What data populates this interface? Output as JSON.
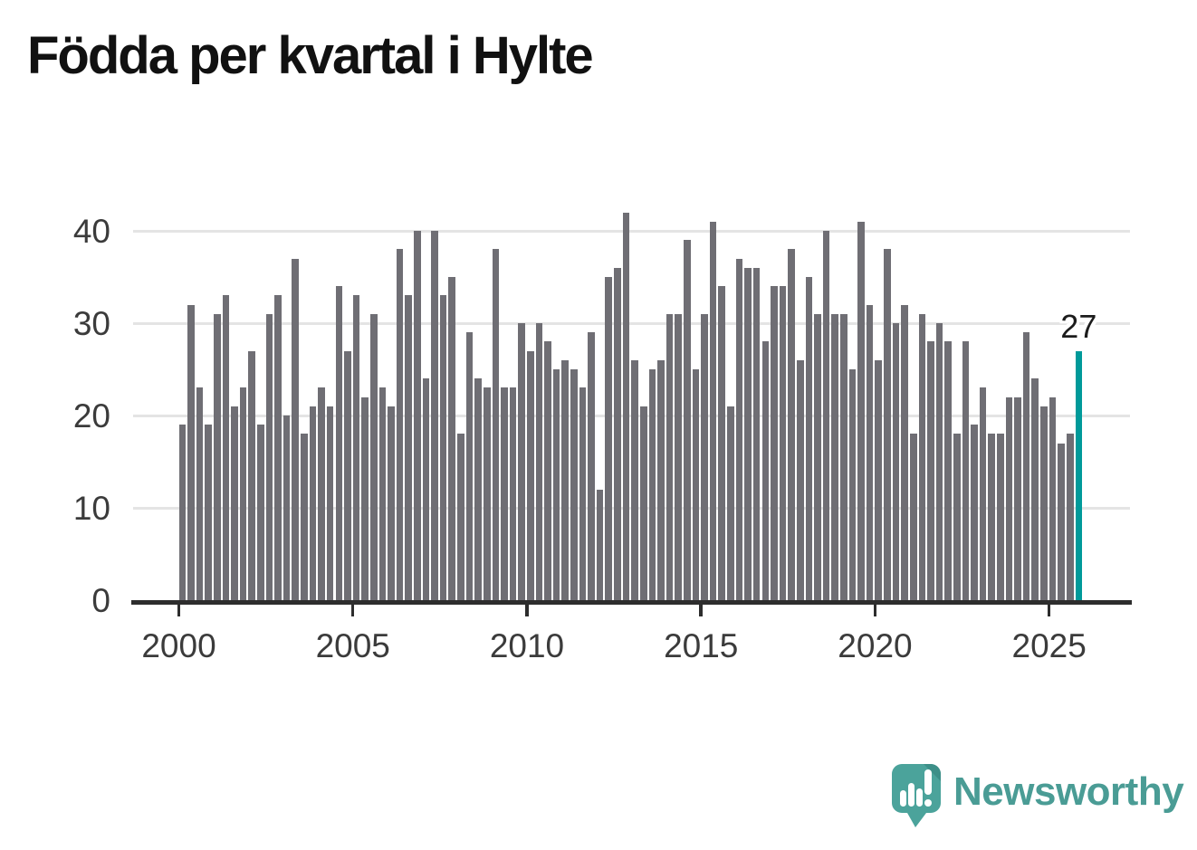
{
  "title": "Födda per kvartal i Hylte",
  "annotation": {
    "label": "27"
  },
  "footer": {
    "brand": "Newsworthy"
  },
  "colors": {
    "bar": "#6f6e74",
    "highlight": "#009a9a",
    "axis": "#2d2d2d",
    "grid": "#e4e4e4",
    "tick_text": "#3b3b3b",
    "title_text": "#111111",
    "logo_bubble": "#4ba39b",
    "logo_fold": "#3d8f88",
    "logo_text": "#4a9c95"
  },
  "chart_data": {
    "type": "bar",
    "title": "Födda per kvartal i Hylte",
    "xlabel": "",
    "ylabel": "",
    "frequency": "quarterly",
    "start_period": "2000-Q1",
    "end_period": "2025-Q4",
    "values": [
      19,
      32,
      23,
      19,
      31,
      33,
      21,
      23,
      27,
      19,
      31,
      33,
      20,
      37,
      18,
      21,
      23,
      21,
      34,
      27,
      33,
      22,
      31,
      23,
      21,
      38,
      33,
      40,
      24,
      40,
      33,
      35,
      18,
      29,
      24,
      23,
      38,
      23,
      23,
      30,
      27,
      30,
      28,
      25,
      26,
      25,
      23,
      29,
      12,
      35,
      36,
      42,
      26,
      21,
      25,
      26,
      31,
      31,
      39,
      25,
      31,
      41,
      34,
      21,
      37,
      36,
      36,
      28,
      34,
      34,
      38,
      26,
      35,
      31,
      40,
      31,
      31,
      25,
      41,
      32,
      26,
      38,
      30,
      32,
      18,
      31,
      28,
      30,
      28,
      18,
      28,
      19,
      23,
      18,
      18,
      22,
      22,
      29,
      24,
      21,
      22,
      17,
      18,
      27
    ],
    "highlight_index": 103,
    "highlight_value_label": "27",
    "yticks": [
      0,
      10,
      20,
      30,
      40
    ],
    "xticks": [
      2000,
      2005,
      2010,
      2015,
      2020,
      2025
    ],
    "ylim": [
      0,
      44
    ],
    "grid": true,
    "legend": "none",
    "bar_color": "#6f6e74",
    "highlight_color": "#009a9a"
  }
}
